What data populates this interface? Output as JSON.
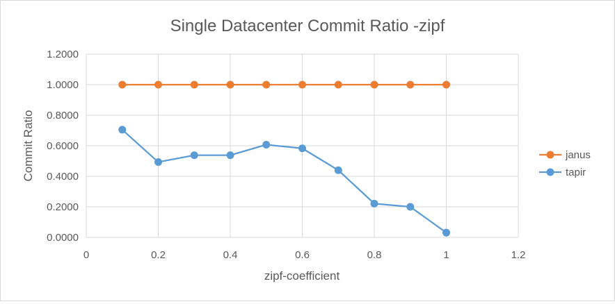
{
  "chart_data": {
    "type": "scatter",
    "title": "Single Datacenter Commit Ratio -zipf",
    "xlabel": "zipf-coefficient",
    "ylabel": "Commit Ratio",
    "xlim": [
      0,
      1.2
    ],
    "ylim": [
      0,
      1.2
    ],
    "x_ticks": [
      0,
      0.2,
      0.4,
      0.6,
      0.8,
      1,
      1.2
    ],
    "x_tick_labels": [
      "0",
      "0.2",
      "0.4",
      "0.6",
      "0.8",
      "1",
      "1.2"
    ],
    "y_ticks": [
      0,
      0.2,
      0.4,
      0.6,
      0.8,
      1.0,
      1.2
    ],
    "y_tick_labels": [
      "0.0000",
      "0.2000",
      "0.4000",
      "0.6000",
      "0.8000",
      "1.0000",
      "1.2000"
    ],
    "grid": true,
    "legend_position": "right",
    "series": [
      {
        "name": "janus",
        "color": "#ED7D31",
        "x": [
          0.1,
          0.2,
          0.3,
          0.4,
          0.5,
          0.6,
          0.7,
          0.8,
          0.9,
          1.0
        ],
        "y": [
          1.0,
          1.0,
          1.0,
          1.0,
          1.0,
          1.0,
          1.0,
          1.0,
          1.0,
          1.0
        ]
      },
      {
        "name": "tapir",
        "color": "#5B9BD5",
        "x": [
          0.1,
          0.2,
          0.3,
          0.4,
          0.5,
          0.6,
          0.7,
          0.8,
          0.9,
          1.0
        ],
        "y": [
          0.705,
          0.493,
          0.538,
          0.538,
          0.607,
          0.583,
          0.44,
          0.221,
          0.2,
          0.031
        ]
      }
    ]
  }
}
